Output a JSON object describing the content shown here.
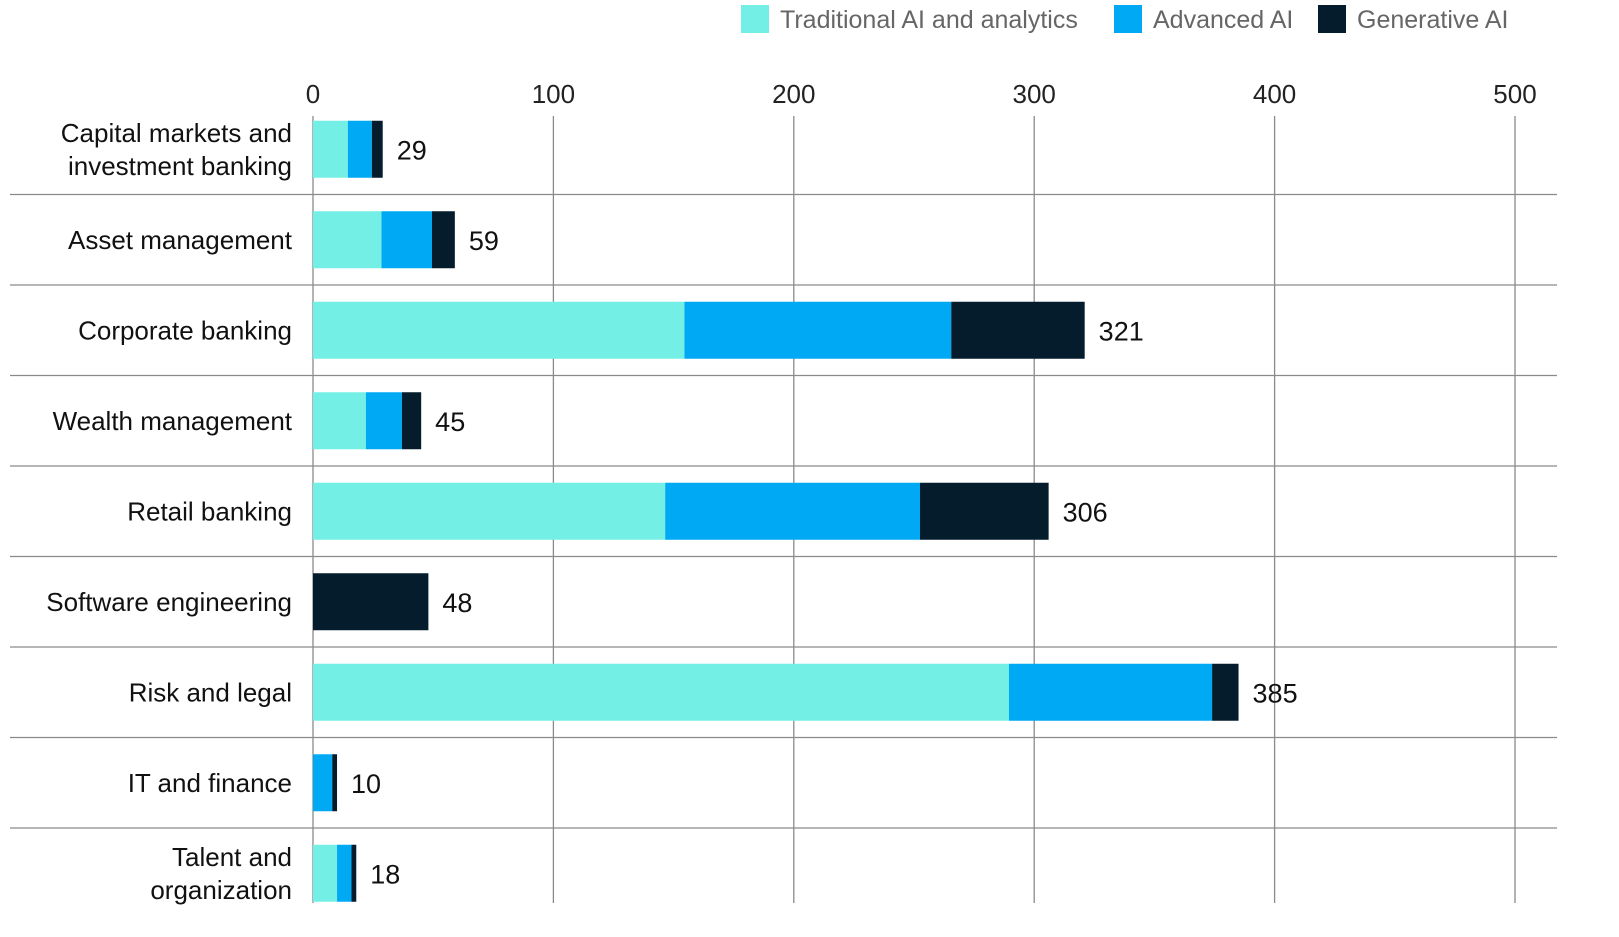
{
  "chart_data": {
    "type": "bar",
    "orientation": "horizontal",
    "stacked": true,
    "categories": [
      "Capital markets and investment banking",
      "Asset management",
      "Corporate banking",
      "Wealth management",
      "Retail banking",
      "Software engineering",
      "Risk and legal",
      "IT and finance",
      "Talent and organization"
    ],
    "category_lines": [
      [
        "Capital markets and",
        "investment banking"
      ],
      [
        "Asset management"
      ],
      [
        "Corporate banking"
      ],
      [
        "Wealth management"
      ],
      [
        "Retail banking"
      ],
      [
        "Software engineering"
      ],
      [
        "Risk and legal"
      ],
      [
        "IT and finance"
      ],
      [
        "Talent and",
        "organization"
      ]
    ],
    "series": [
      {
        "name": "Traditional AI and analytics",
        "color": "#74EFE6",
        "values": [
          14.5,
          28.5,
          154.5,
          22,
          146.5,
          0,
          289.5,
          0,
          10
        ]
      },
      {
        "name": "Advanced AI",
        "color": "#00A9F4",
        "values": [
          10,
          21,
          111,
          15,
          106,
          0,
          84.5,
          8,
          6
        ]
      },
      {
        "name": "Generative  AI",
        "color": "#051C2C",
        "values": [
          4.5,
          9.5,
          55.5,
          8,
          53.5,
          48,
          11,
          2,
          2
        ]
      }
    ],
    "totals": [
      "29",
      "59",
      "321",
      "45",
      "306",
      "48",
      "385",
      "10",
      "18"
    ],
    "xticks": [
      "0",
      "100",
      "200",
      "300",
      "400",
      "500"
    ],
    "xlim": [
      0,
      500
    ],
    "grid": true,
    "legend_position": "top-right",
    "title": "",
    "xlabel": "",
    "ylabel": ""
  }
}
